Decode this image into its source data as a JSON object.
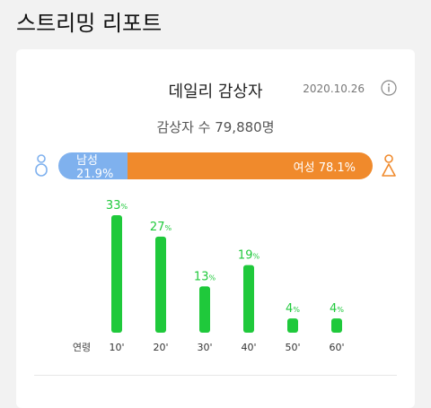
{
  "header": {
    "title": "스트리밍 리포트"
  },
  "card": {
    "title": "데일리 감상자",
    "date": "2020.10.26",
    "viewers": "감상자 수 79,880명"
  },
  "gender": {
    "male_label": "남성 21.9%",
    "female_label": "여성 78.1%",
    "male_share": 0.219,
    "female_share": 0.781,
    "male_color": "#7fb1ee",
    "female_color": "#f08a2c",
    "male_icon": "male-person-icon",
    "female_icon": "female-person-icon"
  },
  "chart_data": {
    "type": "bar",
    "xlabel": "연령",
    "categories": [
      "10'",
      "20'",
      "30'",
      "40'",
      "50'",
      "60'"
    ],
    "values": [
      33,
      27,
      13,
      19,
      4,
      4
    ],
    "value_labels": [
      "33",
      "27",
      "13",
      "19",
      "4",
      "4"
    ],
    "unit": "%",
    "color": "#1fc93b",
    "ylim": [
      0,
      33
    ]
  }
}
